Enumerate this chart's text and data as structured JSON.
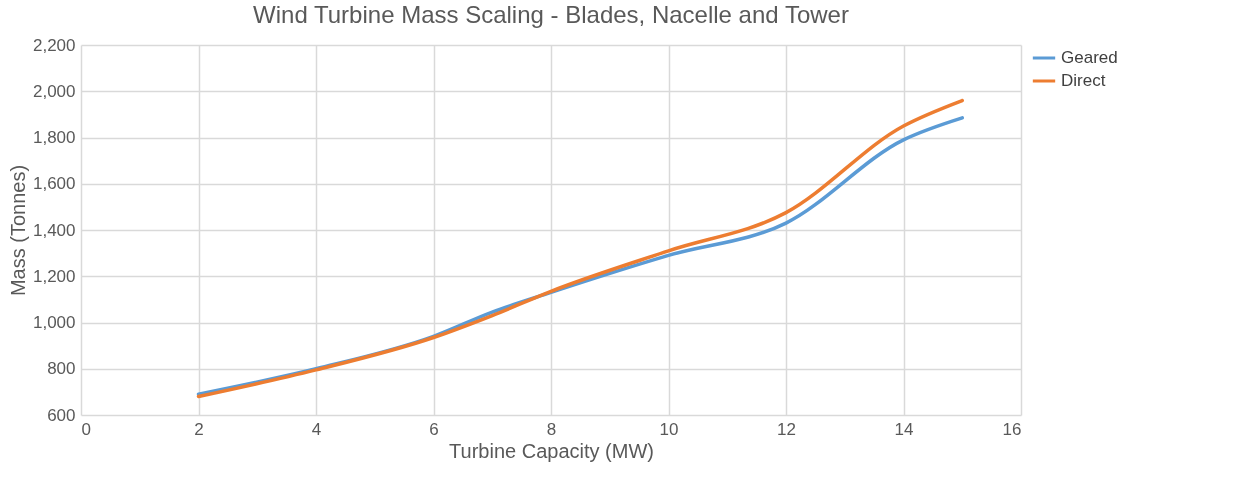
{
  "chart_data": {
    "type": "line",
    "title": "Wind Turbine Mass Scaling - Blades, Nacelle and Tower",
    "xlabel": "Turbine Capacity (MW)",
    "ylabel": "Mass (Tonnes)",
    "x": [
      2,
      4,
      6,
      7,
      8,
      10,
      12,
      14,
      15
    ],
    "series": [
      {
        "name": "Geared",
        "color": "#5b9bd5",
        "values": [
          690,
          800,
          940,
          1045,
          1130,
          1290,
          1430,
          1790,
          1885
        ]
      },
      {
        "name": "Direct",
        "color": "#ed7d31",
        "values": [
          680,
          795,
          935,
          1030,
          1135,
          1310,
          1475,
          1850,
          1960
        ]
      }
    ],
    "xlim": [
      0,
      16
    ],
    "xticks": [
      0,
      2,
      4,
      6,
      8,
      10,
      12,
      14,
      16
    ],
    "ylim": [
      600,
      2200
    ],
    "yticks": [
      600,
      800,
      {
        "value": 1000,
        "label": "1,000"
      },
      {
        "value": 1200,
        "label": "1,200"
      },
      {
        "value": 1400,
        "label": "1,400"
      },
      {
        "value": 1600,
        "label": "1,600"
      },
      {
        "value": 1800,
        "label": "1,800"
      },
      {
        "value": 2000,
        "label": "2,000"
      },
      {
        "value": 2200,
        "label": "2,200"
      }
    ],
    "grid": true,
    "legend": "top right",
    "marker": "none",
    "line_style": "solid"
  }
}
